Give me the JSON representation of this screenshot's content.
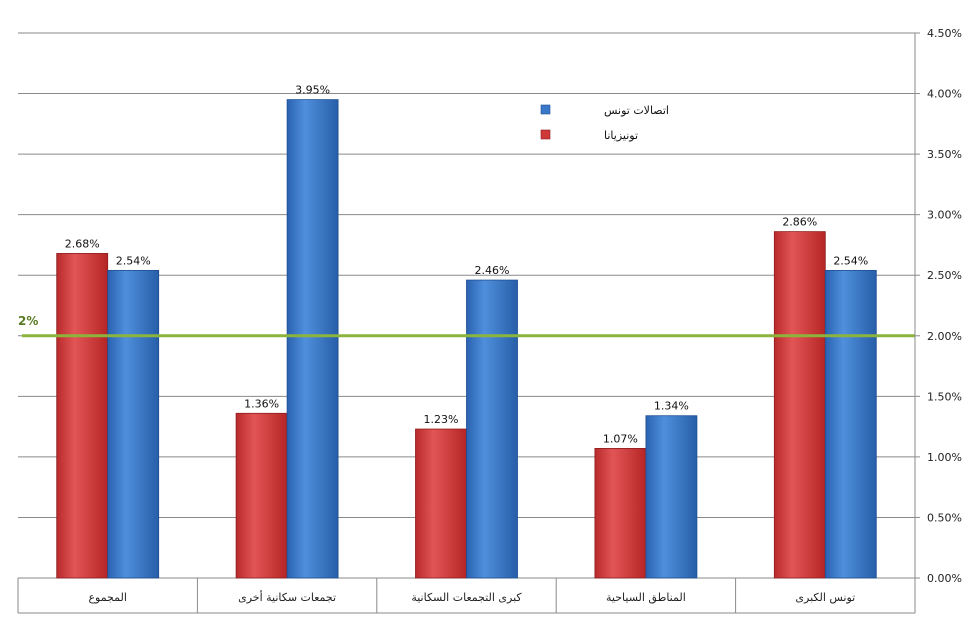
{
  "chart_data": {
    "type": "bar",
    "categories": [
      "المجموع",
      "تجمعات سكانية أخرى",
      "كبرى التجمعات السكانية",
      "المناطق السياحية",
      "تونس الكبرى"
    ],
    "series": [
      {
        "name": "تونيزيانا",
        "values": [
          2.68,
          1.36,
          1.23,
          1.07,
          2.86
        ],
        "color": "#d0393a"
      },
      {
        "name": "اتصالات تونس",
        "values": [
          2.54,
          3.95,
          2.46,
          1.34,
          2.54
        ],
        "color": "#3a78c9"
      }
    ],
    "value_labels": [
      [
        "2.68%",
        "1.36%",
        "1.23%",
        "1.07%",
        "2.86%"
      ],
      [
        "2.54%",
        "3.95%",
        "2.46%",
        "1.34%",
        "2.54%"
      ]
    ],
    "ylim": [
      0,
      4.5
    ],
    "yticks": [
      0,
      0.5,
      1,
      1.5,
      2,
      2.5,
      3,
      3.5,
      4,
      4.5
    ],
    "ytick_labels": [
      "0.00%",
      "0.50%",
      "1.00%",
      "1.50%",
      "2.00%",
      "2.50%",
      "3.00%",
      "3.50%",
      "4.00%",
      "4.50%"
    ],
    "y_axis_side": "right",
    "gridlines": true,
    "legend_position": "top-center",
    "reference_line": {
      "value": 2,
      "label": "2%",
      "color": "#8cb43c"
    },
    "title": "",
    "xlabel": "",
    "ylabel": ""
  }
}
